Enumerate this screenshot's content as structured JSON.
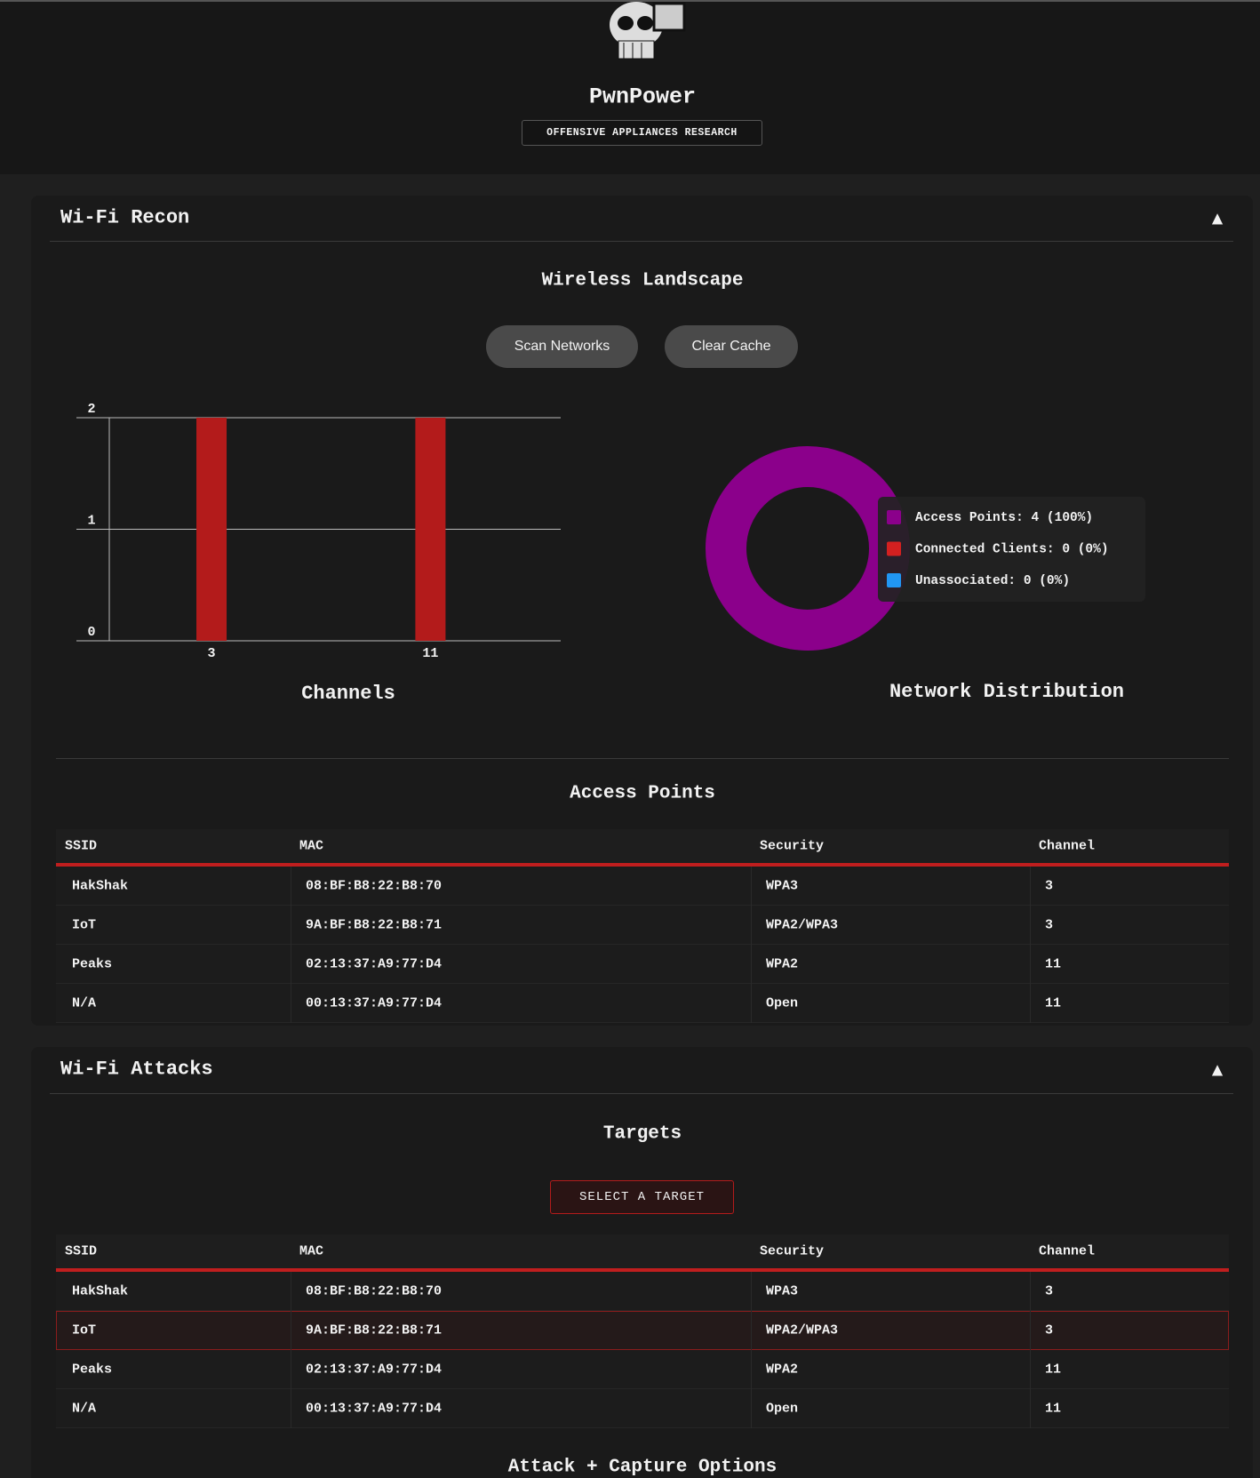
{
  "header": {
    "title": "PwnPower",
    "subtitle": "OFFENSIVE APPLIANCES RESEARCH"
  },
  "recon": {
    "title": "Wi-Fi Recon",
    "toggle": "▲",
    "heading": "Wireless Landscape",
    "buttons": [
      "Scan Networks",
      "Clear Cache"
    ],
    "channels_chart": {
      "type": "bar",
      "title": "Channels",
      "categories": [
        "3",
        "11"
      ],
      "values": [
        2,
        2
      ],
      "color": "#b31b1b",
      "ylim": [
        0,
        2
      ],
      "yticks": [
        0,
        1,
        2
      ]
    },
    "distribution_chart": {
      "type": "pie",
      "title": "Network Distribution",
      "labels": [
        "Access Points: 4 (100%)",
        "Connected Clients: 0 (0%)",
        "Unassociated: 0 (0%)"
      ],
      "values": [
        4,
        0,
        0
      ],
      "colors": [
        "#8b008b",
        "#d42020",
        "#2196f3"
      ]
    },
    "ap_heading": "Access Points",
    "table": {
      "columns": [
        "SSID",
        "MAC",
        "Security",
        "Channel"
      ],
      "rows": [
        [
          "HakShak",
          "08:BF:B8:22:B8:70",
          "WPA3",
          "3"
        ],
        [
          "IoT",
          "9A:BF:B8:22:B8:71",
          "WPA2/WPA3",
          "3"
        ],
        [
          "Peaks",
          "02:13:37:A9:77:D4",
          "WPA2",
          "11"
        ],
        [
          "N/A",
          "00:13:37:A9:77:D4",
          "Open",
          "11"
        ]
      ]
    }
  },
  "attacks": {
    "title": "Wi-Fi Attacks",
    "toggle": "▲",
    "heading": "Targets",
    "button": "SELECT A TARGET",
    "table": {
      "columns": [
        "SSID",
        "MAC",
        "Security",
        "Channel"
      ],
      "rows": [
        [
          "HakShak",
          "08:BF:B8:22:B8:70",
          "WPA3",
          "3"
        ],
        [
          "IoT",
          "9A:BF:B8:22:B8:71",
          "WPA2/WPA3",
          "3"
        ],
        [
          "Peaks",
          "02:13:37:A9:77:D4",
          "WPA2",
          "11"
        ],
        [
          "N/A",
          "00:13:37:A9:77:D4",
          "Open",
          "11"
        ]
      ]
    },
    "highlighted_row": 1,
    "options_heading": "Attack + Capture Options"
  }
}
